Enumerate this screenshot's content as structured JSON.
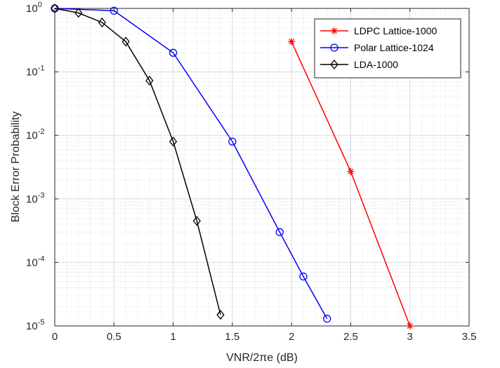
{
  "chart_data": {
    "type": "line",
    "xlabel": "VNR/2πe (dB)",
    "ylabel": "Block Error Probability",
    "xlim": [
      0,
      3.5
    ],
    "ylim": [
      1e-05,
      1
    ],
    "y_scale": "log",
    "grid": true,
    "minor_grid": true,
    "legend_position": "top-right",
    "x_ticks": [
      0,
      0.5,
      1,
      1.5,
      2,
      2.5,
      3,
      3.5
    ],
    "x_tick_labels": [
      "0",
      "0.5",
      "1",
      "1.5",
      "2",
      "2.5",
      "3",
      "3.5"
    ],
    "y_ticks": [
      {
        "value": 1e-05,
        "base": "10",
        "exp": "-5"
      },
      {
        "value": 0.0001,
        "base": "10",
        "exp": "-4"
      },
      {
        "value": 0.001,
        "base": "10",
        "exp": "-3"
      },
      {
        "value": 0.01,
        "base": "10",
        "exp": "-2"
      },
      {
        "value": 0.1,
        "base": "10",
        "exp": "-1"
      },
      {
        "value": 1,
        "base": "10",
        "exp": "0"
      }
    ],
    "series": [
      {
        "name": "LDPC Lattice-1000",
        "color": "#ff0000",
        "marker": "asterisk",
        "x": [
          2.0,
          2.5,
          3.0
        ],
        "y": [
          0.3,
          0.0027,
          1e-05
        ]
      },
      {
        "name": "Polar Lattice-1024",
        "color": "#0000ff",
        "marker": "circle",
        "x": [
          0,
          0.5,
          1.0,
          1.5,
          1.9,
          2.1,
          2.3
        ],
        "y": [
          1.0,
          0.92,
          0.2,
          0.008,
          0.0003,
          6e-05,
          1.3e-05
        ]
      },
      {
        "name": "LDA-1000",
        "color": "#000000",
        "marker": "diamond",
        "x": [
          0,
          0.2,
          0.4,
          0.6,
          0.8,
          1.0,
          1.2,
          1.4
        ],
        "y": [
          1.0,
          0.85,
          0.6,
          0.3,
          0.073,
          0.008,
          0.00045,
          1.5e-05
        ]
      }
    ]
  }
}
